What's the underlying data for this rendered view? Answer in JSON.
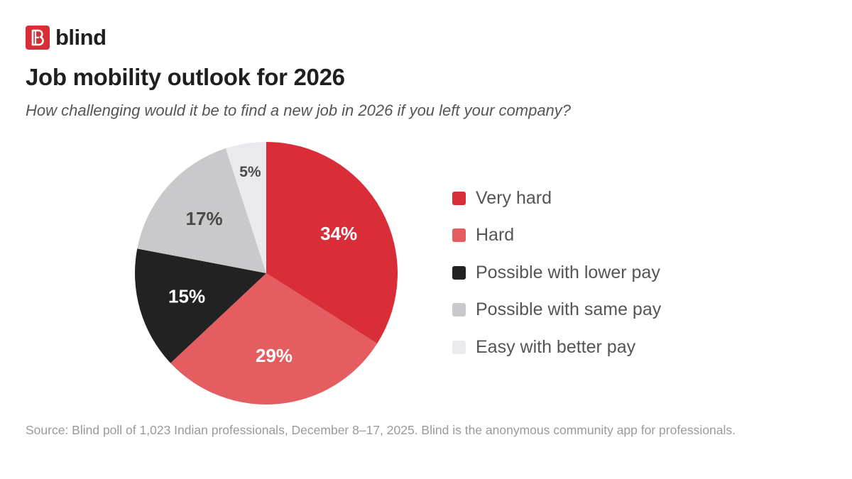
{
  "brand": {
    "name": "blind",
    "logo_icon": "blind-b-logo-icon",
    "color": "#d92e38"
  },
  "header": {
    "title": "Job mobility outlook for 2026",
    "subtitle": "How challenging would it be to find a new job in 2026 if you left your company?"
  },
  "chart_data": {
    "type": "pie",
    "title": "Job mobility outlook for 2026",
    "subtitle": "How challenging would it be to find a new job in 2026 if you left your company?",
    "start_angle_deg": 0,
    "direction": "clockwise",
    "legend_position": "right",
    "slices": [
      {
        "label": "Very hard",
        "value": 34,
        "display": "34%",
        "color": "#d92e38",
        "text_color": "#ffffff"
      },
      {
        "label": "Hard",
        "value": 29,
        "display": "29%",
        "color": "#e35d61",
        "text_color": "#ffffff"
      },
      {
        "label": "Possible with lower pay",
        "value": 15,
        "display": "15%",
        "color": "#222222",
        "text_color": "#ffffff"
      },
      {
        "label": "Possible with same pay",
        "value": 17,
        "display": "17%",
        "color": "#c9c9cc",
        "text_color": "#4a4a4a"
      },
      {
        "label": "Easy with better pay",
        "value": 5,
        "display": "5%",
        "color": "#e9e9ee",
        "text_color": "#4a4a4a"
      }
    ]
  },
  "footer": {
    "source": "Source: Blind poll of 1,023 Indian professionals, December 8–17, 2025. Blind is the anonymous community app for professionals."
  }
}
